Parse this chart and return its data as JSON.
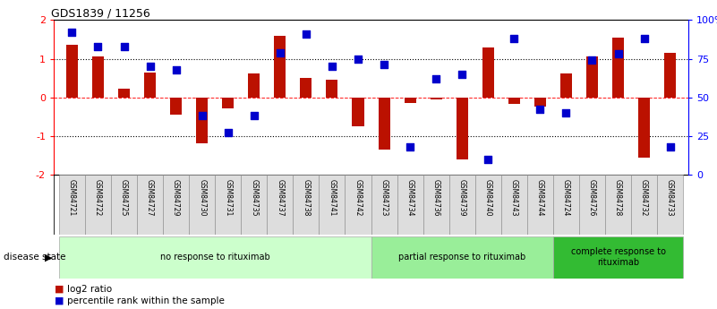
{
  "title": "GDS1839 / 11256",
  "samples": [
    "GSM84721",
    "GSM84722",
    "GSM84725",
    "GSM84727",
    "GSM84729",
    "GSM84730",
    "GSM84731",
    "GSM84735",
    "GSM84737",
    "GSM84738",
    "GSM84741",
    "GSM84742",
    "GSM84723",
    "GSM84734",
    "GSM84736",
    "GSM84739",
    "GSM84740",
    "GSM84743",
    "GSM84744",
    "GSM84724",
    "GSM84726",
    "GSM84728",
    "GSM84732",
    "GSM84733"
  ],
  "log2_ratio": [
    1.35,
    1.05,
    0.22,
    0.65,
    -0.45,
    -1.2,
    -0.28,
    0.62,
    1.6,
    0.5,
    0.45,
    -0.75,
    -1.35,
    -0.15,
    -0.05,
    -1.6,
    1.3,
    -0.18,
    -0.25,
    0.62,
    1.05,
    1.55,
    -1.55,
    1.15
  ],
  "percentile": [
    92,
    83,
    83,
    70,
    68,
    38,
    27,
    38,
    79,
    91,
    70,
    75,
    71,
    18,
    62,
    65,
    10,
    88,
    42,
    40,
    74,
    78,
    88,
    18
  ],
  "groups": [
    {
      "label": "no response to rituximab",
      "start": 0,
      "end": 12,
      "color": "#ccffcc"
    },
    {
      "label": "partial response to rituximab",
      "start": 12,
      "end": 19,
      "color": "#99ee99"
    },
    {
      "label": "complete response to\nrituximab",
      "start": 19,
      "end": 24,
      "color": "#33bb33"
    }
  ],
  "ylim_left": [
    -2,
    2
  ],
  "left_yticks": [
    -2,
    -1,
    0,
    1,
    2
  ],
  "left_yticklabels": [
    "-2",
    "-1",
    "0",
    "1",
    "2"
  ],
  "right_yticklabels": [
    "0",
    "25",
    "50",
    "75",
    "100%"
  ],
  "hlines_dotted": [
    1.0,
    -1.0
  ],
  "hline_red_dashed": 0.0,
  "bar_color": "#bb1100",
  "dot_color": "#0000cc",
  "bar_width": 0.45,
  "dot_size": 28,
  "legend_items": [
    "log2 ratio",
    "percentile rank within the sample"
  ],
  "legend_colors": [
    "#bb1100",
    "#0000cc"
  ],
  "disease_state_label": "disease state",
  "background_color": "#ffffff",
  "group_border_color": "#aaaaaa",
  "tick_label_bg": "#dddddd"
}
